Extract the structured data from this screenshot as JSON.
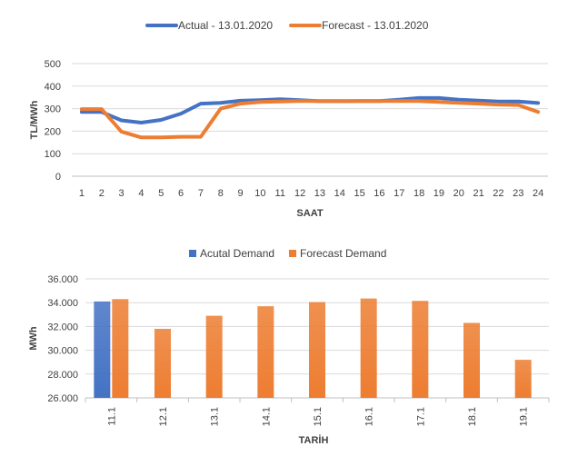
{
  "chart_data": [
    {
      "type": "line",
      "title": "",
      "xlabel": "SAAT",
      "ylabel": "TL/MWh",
      "x": [
        1,
        2,
        3,
        4,
        5,
        6,
        7,
        8,
        9,
        10,
        11,
        12,
        13,
        14,
        15,
        16,
        17,
        18,
        19,
        20,
        21,
        22,
        23,
        24
      ],
      "ylim": [
        0,
        500
      ],
      "yticks": [
        "0",
        "100",
        "200",
        "300",
        "400",
        "500"
      ],
      "grid": true,
      "legend_position": "top",
      "series": [
        {
          "name": "Actual - 13.01.2020",
          "color": "#4472C4",
          "values": [
            285,
            285,
            248,
            238,
            250,
            278,
            322,
            326,
            335,
            338,
            342,
            338,
            333,
            333,
            334,
            334,
            340,
            347,
            347,
            340,
            336,
            332,
            332,
            325
          ]
        },
        {
          "name": "Forecast - 13.01.2020",
          "color": "#ED7D31",
          "values": [
            298,
            298,
            198,
            172,
            172,
            175,
            175,
            300,
            322,
            330,
            332,
            334,
            334,
            334,
            334,
            334,
            334,
            334,
            330,
            326,
            322,
            318,
            316,
            285
          ]
        }
      ]
    },
    {
      "type": "bar",
      "title": "",
      "xlabel": "TARİH",
      "ylabel": "MWh",
      "categories": [
        "11.1",
        "12.1",
        "13.1",
        "14.1",
        "15.1",
        "16.1",
        "17.1",
        "18.1",
        "19.1"
      ],
      "ylim": [
        26000,
        36000
      ],
      "yticks": [
        "26.000",
        "28.000",
        "30.000",
        "32.000",
        "34.000",
        "36.000"
      ],
      "grid": true,
      "legend_position": "top",
      "series": [
        {
          "name": "Acutal Demand",
          "color": "#4472C4",
          "values": [
            34100,
            null,
            null,
            null,
            null,
            null,
            null,
            null,
            null
          ]
        },
        {
          "name": "Forecast Demand",
          "color": "#ED7D31",
          "values": [
            34300,
            31800,
            32900,
            33700,
            34050,
            34350,
            34150,
            32300,
            29200
          ]
        }
      ]
    }
  ]
}
